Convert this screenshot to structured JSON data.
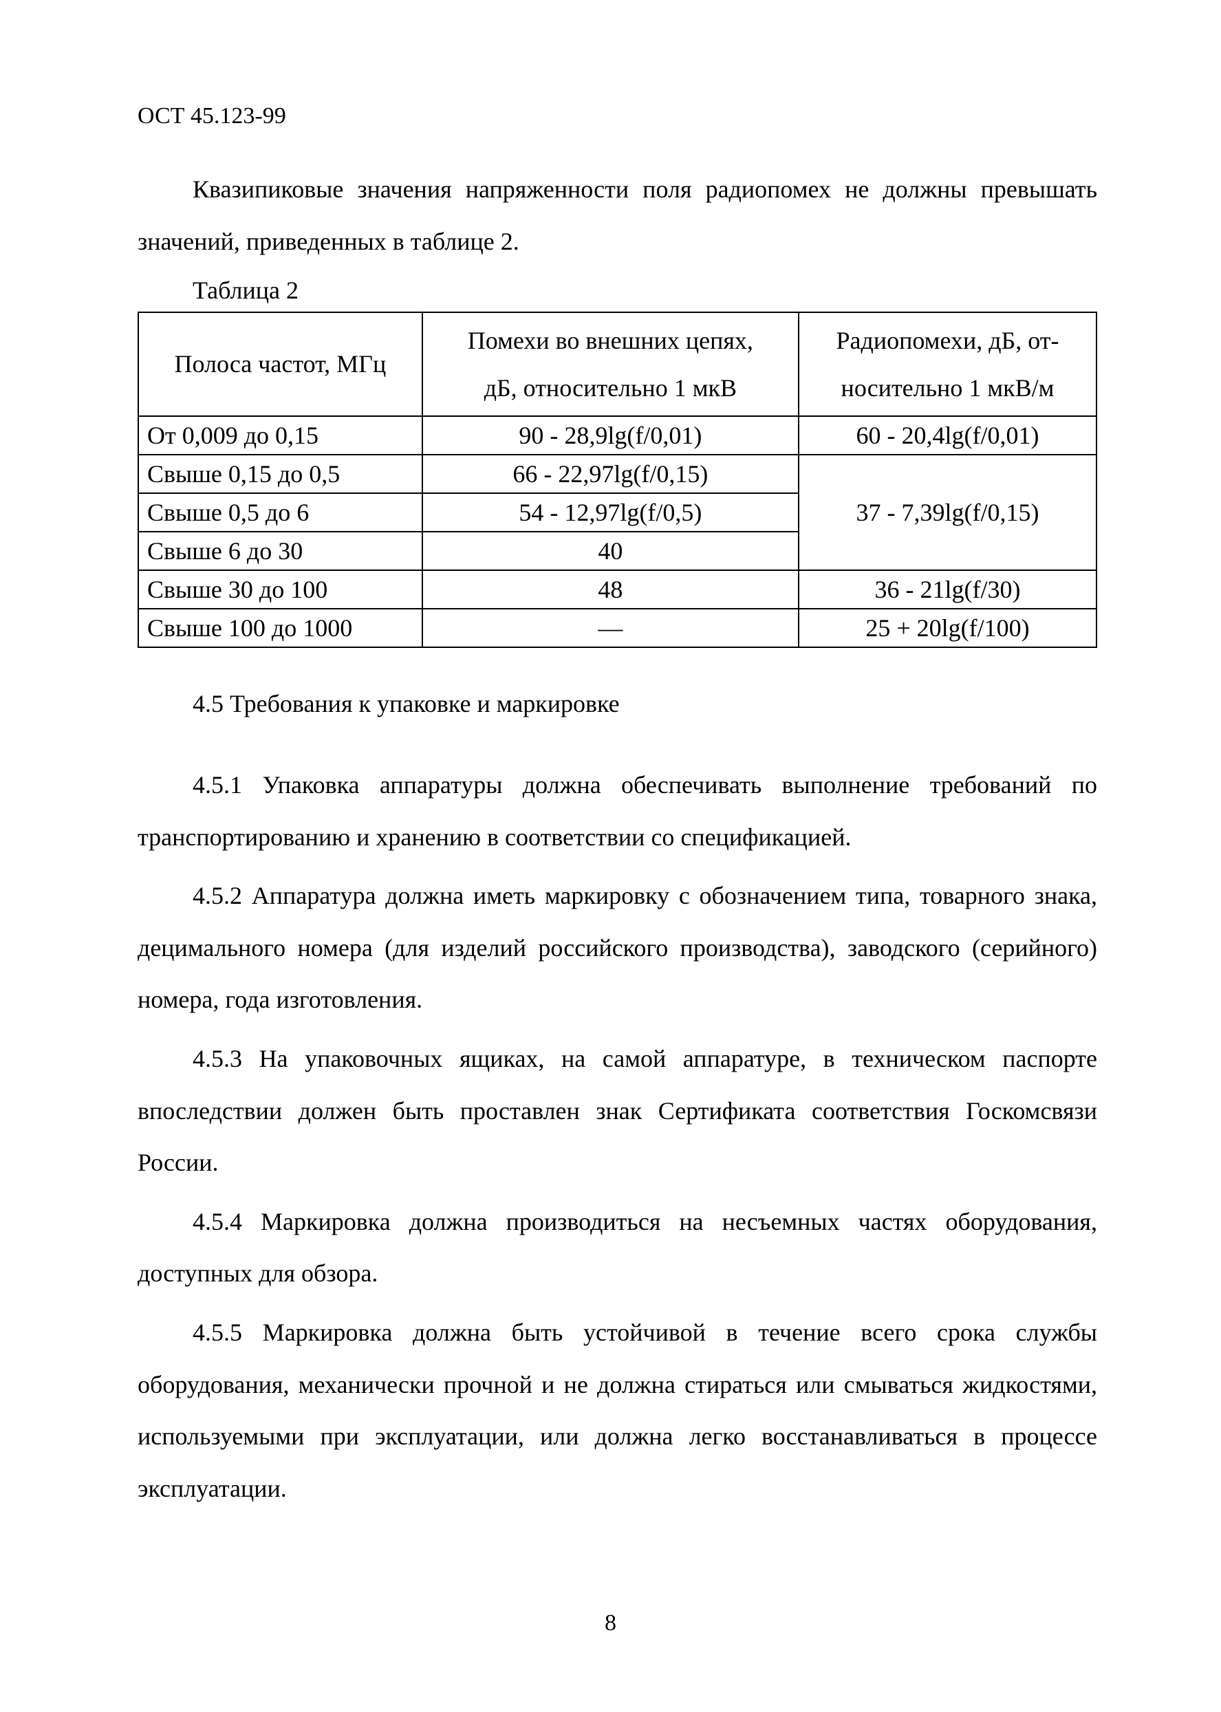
{
  "header": {
    "doc_code": "ОСТ 45.123-99"
  },
  "intro": {
    "p1": "Квазипиковые значения напряженности поля радиопомех не должны превышать значений, приведенных в таблице 2."
  },
  "table2": {
    "caption": "Таблица 2",
    "columns": {
      "c1": "Полоса частот, МГц",
      "c2_line1": "Помехи во внешних цепях,",
      "c2_line2": "дБ, относительно 1 мкВ",
      "c3_line1": "Радиопомехи, дБ, от-",
      "c3_line2": "носительно 1 мкВ/м"
    },
    "rows": [
      {
        "range": "От 0,009 до 0,15",
        "mid": "90 - 28,9lg(f/0,01)",
        "right": "60 - 20,4lg(f/0,01)"
      },
      {
        "range": "Свыше 0,15 до 0,5",
        "mid": "66 - 22,97lg(f/0,15)",
        "right": "37 - 7,39lg(f/0,15)"
      },
      {
        "range": "Свыше 0,5 до 6",
        "mid": "54 - 12,97lg(f/0,5)"
      },
      {
        "range": "Свыше 6 до 30",
        "mid": "40"
      },
      {
        "range": "Свыше 30 до 100",
        "mid": "48",
        "right": "36 - 21lg(f/30)"
      },
      {
        "range": "Свыше 100 до 1000",
        "mid": "—",
        "right": "25 + 20lg(f/100)"
      }
    ]
  },
  "section45": {
    "title": "4.5 Требования к упаковке и маркировке",
    "p451": "4.5.1 Упаковка аппаратуры должна обеспечивать выполнение требований по транспортированию и хранению в соответствии со спецификацией.",
    "p452": "4.5.2 Аппаратура должна иметь маркировку с обозначением типа, товарного знака, децимального номера (для изделий российского производства), заводского (серийного) номера, года изготовления.",
    "p453": "4.5.3 На упаковочных ящиках, на самой аппаратуре, в техническом паспорте впоследствии должен быть проставлен знак Сертификата соответствия Госкомсвязи России.",
    "p454": "4.5.4 Маркировка должна производиться на несъемных частях оборудования, доступных для обзора.",
    "p455": "4.5.5 Маркировка должна быть устойчивой в течение всего срока службы оборудования, механически прочной и не должна стираться или смываться жидкостями, используемыми при эксплуатации, или должна легко восстанавливаться в процессе эксплуатации."
  },
  "page_number": "8"
}
